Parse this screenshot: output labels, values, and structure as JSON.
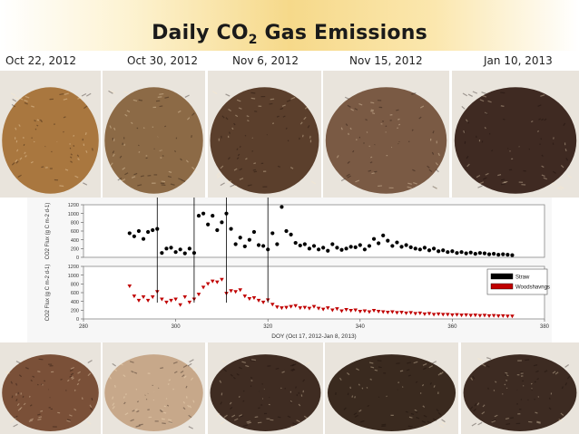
{
  "slide": {
    "title_main": "Daily CO",
    "title_sub": "2",
    "title_rest": " Gas Emissions"
  },
  "dates": [
    "Oct 22, 2012",
    "Oct 30, 2012",
    "Nov 6, 2012",
    "Nov 15, 2012",
    "Jan 10, 2013"
  ],
  "photos_top": [
    {
      "name": "straw-photo-oct22",
      "color": "#a9773f"
    },
    {
      "name": "straw-photo-oct30",
      "color": "#8c6a46"
    },
    {
      "name": "straw-photo-nov6",
      "color": "#5b3f2c"
    },
    {
      "name": "straw-photo-nov15",
      "color": "#7a5a44"
    },
    {
      "name": "straw-photo-jan10",
      "color": "#3f2a22"
    }
  ],
  "photos_bottom": [
    {
      "name": "wood-photo-oct22",
      "color": "#7a5038"
    },
    {
      "name": "wood-photo-oct30",
      "color": "#c7a88a"
    },
    {
      "name": "wood-photo-nov6",
      "color": "#3f2c22"
    },
    {
      "name": "wood-photo-nov15",
      "color": "#3a2a1f"
    },
    {
      "name": "wood-photo-jan10",
      "color": "#3d2b22"
    }
  ],
  "chart_data": {
    "type": "scatter",
    "xlabel": "DOY (Oct 17, 2012-Jan 8, 2013)",
    "xlim": [
      280,
      380
    ],
    "xticks": [
      280,
      300,
      320,
      340,
      360,
      380
    ],
    "ylim": [
      0,
      1200
    ],
    "yticks": [
      0,
      200,
      400,
      600,
      800,
      1000,
      1200
    ],
    "ylabel_top": "CO2 Flux (g C m-2 d-1)",
    "ylabel_bottom": "CO2 Flux (g C m-2 d-1)",
    "sample_dates_doy": [
      296,
      304,
      311,
      320
    ],
    "legend": [
      "Straw",
      "Woodshavngs"
    ],
    "series": [
      {
        "name": "Straw",
        "color": "#000000",
        "x": [
          290,
          291,
          292,
          293,
          294,
          295,
          296,
          297,
          298,
          299,
          300,
          301,
          302,
          303,
          304,
          305,
          306,
          307,
          308,
          309,
          310,
          311,
          312,
          313,
          314,
          315,
          316,
          317,
          318,
          319,
          320,
          321,
          322,
          323,
          324,
          325,
          326,
          327,
          328,
          329,
          330,
          331,
          332,
          333,
          334,
          335,
          336,
          337,
          338,
          339,
          340,
          341,
          342,
          343,
          344,
          345,
          346,
          347,
          348,
          349,
          350,
          351,
          352,
          353,
          354,
          355,
          356,
          357,
          358,
          359,
          360,
          361,
          362,
          363,
          364,
          365,
          366,
          367,
          368,
          369,
          370,
          371,
          372,
          373
        ],
        "y": [
          550,
          480,
          600,
          420,
          580,
          620,
          650,
          100,
          200,
          220,
          120,
          180,
          90,
          200,
          100,
          950,
          1000,
          750,
          950,
          620,
          800,
          1000,
          650,
          300,
          450,
          250,
          400,
          580,
          280,
          260,
          180,
          550,
          300,
          1150,
          600,
          520,
          330,
          270,
          300,
          200,
          260,
          180,
          220,
          150,
          300,
          220,
          170,
          200,
          240,
          230,
          280,
          180,
          260,
          420,
          320,
          500,
          380,
          260,
          340,
          240,
          280,
          230,
          200,
          180,
          220,
          160,
          200,
          140,
          160,
          120,
          140,
          100,
          120,
          90,
          110,
          80,
          100,
          90,
          70,
          80,
          60,
          70,
          60,
          50
        ]
      },
      {
        "name": "Woodshavngs",
        "color": "#c00000",
        "x": [
          290,
          291,
          292,
          293,
          294,
          295,
          296,
          297,
          298,
          299,
          300,
          301,
          302,
          303,
          304,
          305,
          306,
          307,
          308,
          309,
          310,
          311,
          312,
          313,
          314,
          315,
          316,
          317,
          318,
          319,
          320,
          321,
          322,
          323,
          324,
          325,
          326,
          327,
          328,
          329,
          330,
          331,
          332,
          333,
          334,
          335,
          336,
          337,
          338,
          339,
          340,
          341,
          342,
          343,
          344,
          345,
          346,
          347,
          348,
          349,
          350,
          351,
          352,
          353,
          354,
          355,
          356,
          357,
          358,
          359,
          360,
          361,
          362,
          363,
          364,
          365,
          366,
          367,
          368,
          369,
          370,
          371,
          372,
          373
        ],
        "y": [
          750,
          520,
          420,
          500,
          420,
          500,
          620,
          450,
          380,
          420,
          450,
          320,
          500,
          380,
          450,
          560,
          720,
          800,
          860,
          840,
          900,
          580,
          640,
          620,
          660,
          520,
          460,
          480,
          420,
          380,
          430,
          330,
          270,
          250,
          260,
          280,
          300,
          250,
          260,
          240,
          280,
          240,
          220,
          250,
          200,
          230,
          180,
          210,
          190,
          200,
          170,
          180,
          160,
          190,
          170,
          160,
          150,
          160,
          140,
          150,
          130,
          140,
          120,
          130,
          110,
          120,
          100,
          110,
          100,
          100,
          90,
          95,
          85,
          90,
          80,
          85,
          75,
          80,
          70,
          75,
          65,
          70,
          60,
          60
        ]
      }
    ]
  }
}
